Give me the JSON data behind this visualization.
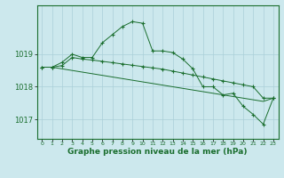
{
  "title": "Graphe pression niveau de la mer (hPa)",
  "background_color": "#cce8ed",
  "grid_color": "#aacfd8",
  "line_color": "#1a6e2e",
  "x_ticks": [
    0,
    1,
    2,
    3,
    4,
    5,
    6,
    7,
    8,
    9,
    10,
    11,
    12,
    13,
    14,
    15,
    16,
    17,
    18,
    19,
    20,
    21,
    22,
    23
  ],
  "ylim": [
    1016.4,
    1020.5
  ],
  "yticks": [
    1017,
    1018,
    1019
  ],
  "series1": [
    1018.6,
    1018.6,
    1018.75,
    1019.0,
    1018.9,
    1018.9,
    1019.35,
    1019.6,
    1019.85,
    1020.0,
    1019.95,
    1019.1,
    1019.1,
    1019.05,
    1018.85,
    1018.55,
    1018.0,
    1018.0,
    1017.75,
    1017.8,
    1017.4,
    1017.15,
    1016.85,
    1017.65
  ],
  "series2": [
    1018.6,
    1018.6,
    1018.65,
    1018.9,
    1018.85,
    1018.82,
    1018.78,
    1018.74,
    1018.7,
    1018.66,
    1018.62,
    1018.58,
    1018.54,
    1018.48,
    1018.42,
    1018.36,
    1018.3,
    1018.24,
    1018.18,
    1018.12,
    1018.06,
    1018.0,
    1017.65,
    1017.65
  ],
  "series3": [
    1018.6,
    1018.6,
    1018.55,
    1018.5,
    1018.45,
    1018.4,
    1018.35,
    1018.3,
    1018.25,
    1018.2,
    1018.15,
    1018.1,
    1018.05,
    1018.0,
    1017.95,
    1017.9,
    1017.85,
    1017.8,
    1017.75,
    1017.7,
    1017.65,
    1017.6,
    1017.55,
    1017.65
  ]
}
